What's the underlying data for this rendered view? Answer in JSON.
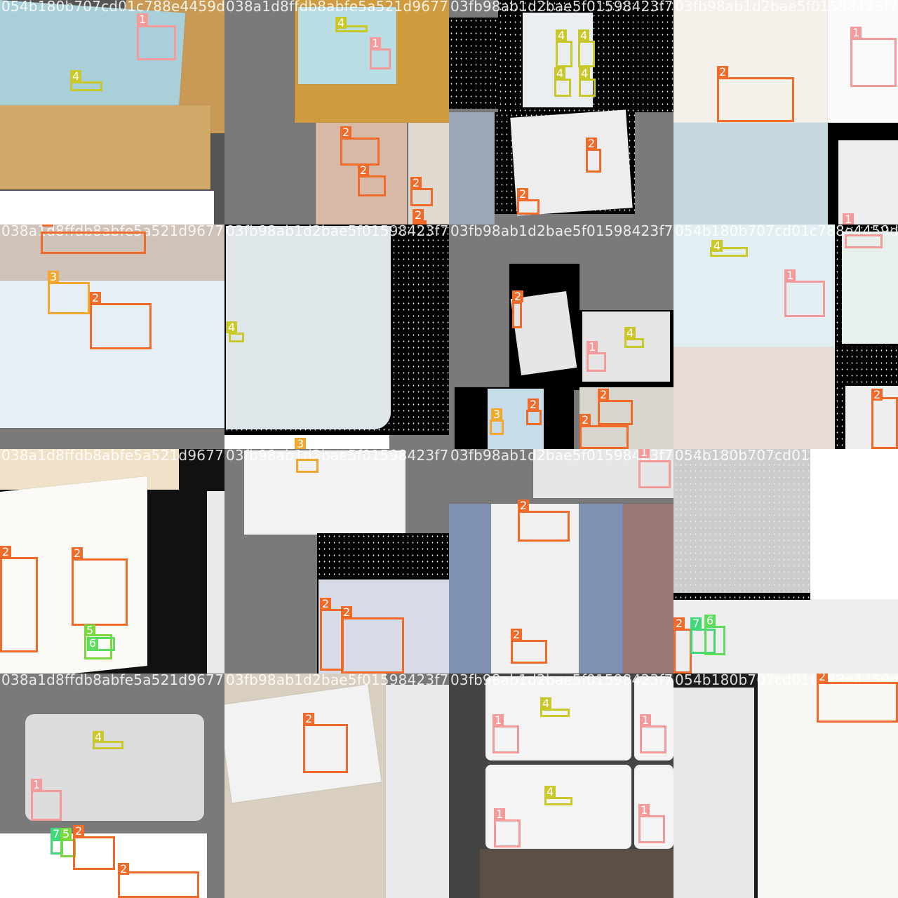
{
  "classes": {
    "1": {
      "color": "#f59a9a",
      "icon": "qr-code"
    },
    "2": {
      "color": "#f06a2a",
      "icon": "round-stamp"
    },
    "3": {
      "color": "#f2a830",
      "icon": "seal"
    },
    "4": {
      "color": "#c8c82a",
      "icon": "train-number"
    },
    "5": {
      "color": "#7ad83e",
      "icon": "mark"
    },
    "6": {
      "color": "#5edc5e",
      "icon": "mark"
    },
    "7": {
      "color": "#42d87a",
      "icon": "mark"
    }
  },
  "tiles": [
    {
      "id": "t0",
      "filename": "054b180b707cd01c788e4459d6"
    },
    {
      "id": "t1",
      "filename": "038a1d8ffdb8abfe5a521d96777"
    },
    {
      "id": "t2",
      "filename": "03fb98ab1d2bae5f01598423f7d"
    },
    {
      "id": "t3",
      "filename": "03fb98ab1d2bae5f01598423f7d"
    },
    {
      "id": "t4",
      "filename": "038a1d8ffdb8abfe5a521d96777"
    },
    {
      "id": "t5",
      "filename": "03fb98ab1d2bae5f01598423f7d"
    },
    {
      "id": "t6",
      "filename": "03fb98ab1d2bae5f01598423f7d"
    },
    {
      "id": "t7",
      "filename": "054b180b707cd01c788e4459d6"
    },
    {
      "id": "t8",
      "filename": "038a1d8ffdb8abfe5a521d96777"
    },
    {
      "id": "t9",
      "filename": "03fb98ab1d2bae5f01598423f7d"
    },
    {
      "id": "t10",
      "filename": "03fb98ab1d2bae5f01598423f7d"
    },
    {
      "id": "t11",
      "filename": "054b180b707cd01c788e4459d6"
    },
    {
      "id": "t12",
      "filename": "038a1d8ffdb8abfe5a521d96777"
    },
    {
      "id": "t13",
      "filename": "03fb98ab1d2bae5f01598423f7d"
    },
    {
      "id": "t14",
      "filename": "03fb98ab1d2bae5f01598423f7d"
    },
    {
      "id": "t15",
      "filename": "054b180b707cd01c788e4459d6"
    }
  ],
  "labels": [
    "1",
    "2",
    "3",
    "4",
    "5",
    "6",
    "7"
  ]
}
